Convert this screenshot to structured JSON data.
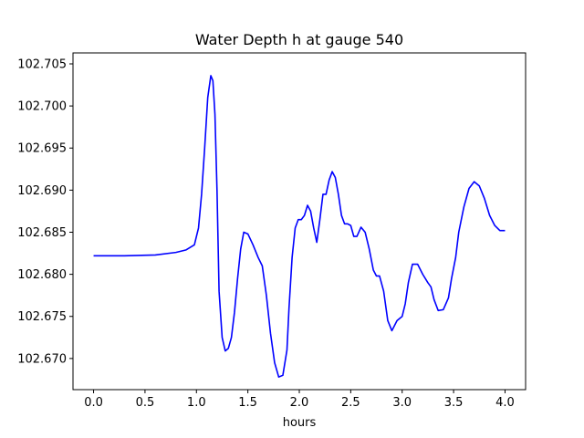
{
  "chart_data": {
    "type": "line",
    "title": "Water Depth h at gauge 540",
    "xlabel": "hours",
    "ylabel": "",
    "xlim": [
      -0.2,
      4.2
    ],
    "ylim": [
      102.6663,
      102.7063
    ],
    "grid": false,
    "xticks": [
      0.0,
      0.5,
      1.0,
      1.5,
      2.0,
      2.5,
      3.0,
      3.5,
      4.0
    ],
    "xtick_labels": [
      "0.0",
      "0.5",
      "1.0",
      "1.5",
      "2.0",
      "2.5",
      "3.0",
      "3.5",
      "4.0"
    ],
    "yticks": [
      102.67,
      102.675,
      102.68,
      102.685,
      102.69,
      102.695,
      102.7,
      102.705
    ],
    "ytick_labels": [
      "102.670",
      "102.675",
      "102.680",
      "102.685",
      "102.690",
      "102.695",
      "102.700",
      "102.705"
    ],
    "series": [
      {
        "color": "#0000ff",
        "x": [
          0.0,
          0.3,
          0.6,
          0.8,
          0.9,
          0.98,
          1.02,
          1.05,
          1.08,
          1.11,
          1.14,
          1.16,
          1.18,
          1.2,
          1.22,
          1.25,
          1.28,
          1.31,
          1.34,
          1.37,
          1.4,
          1.43,
          1.46,
          1.5,
          1.55,
          1.6,
          1.64,
          1.68,
          1.72,
          1.76,
          1.8,
          1.84,
          1.88,
          1.9,
          1.93,
          1.96,
          1.99,
          2.02,
          2.05,
          2.08,
          2.11,
          2.14,
          2.17,
          2.2,
          2.23,
          2.26,
          2.29,
          2.32,
          2.35,
          2.38,
          2.41,
          2.44,
          2.47,
          2.5,
          2.53,
          2.56,
          2.6,
          2.64,
          2.68,
          2.72,
          2.75,
          2.78,
          2.82,
          2.86,
          2.9,
          2.95,
          3.0,
          3.03,
          3.06,
          3.1,
          3.15,
          3.2,
          3.25,
          3.28,
          3.31,
          3.35,
          3.4,
          3.45,
          3.48,
          3.52,
          3.55,
          3.6,
          3.65,
          3.7,
          3.75,
          3.8,
          3.85,
          3.9,
          3.95,
          4.0
        ],
        "y": [
          102.6822,
          102.6822,
          102.6823,
          102.6826,
          102.6829,
          102.6835,
          102.6855,
          102.6895,
          102.695,
          102.701,
          102.7036,
          102.703,
          102.699,
          102.69,
          102.678,
          102.6725,
          102.6709,
          102.6712,
          102.6725,
          102.6755,
          102.6795,
          102.683,
          102.685,
          102.6848,
          102.6835,
          102.682,
          102.681,
          102.6775,
          102.673,
          102.6695,
          102.6678,
          102.668,
          102.671,
          102.676,
          102.682,
          102.6855,
          102.6865,
          102.6865,
          102.687,
          102.6882,
          102.6875,
          102.6855,
          102.6838,
          102.6865,
          102.6895,
          102.6895,
          102.6912,
          102.6922,
          102.6915,
          102.6895,
          102.687,
          102.686,
          102.686,
          102.6858,
          102.6845,
          102.6845,
          102.6856,
          102.685,
          102.683,
          102.6805,
          102.6798,
          102.6798,
          102.678,
          102.6745,
          102.6733,
          102.6745,
          102.675,
          102.6765,
          102.679,
          102.6812,
          102.6812,
          102.68,
          102.679,
          102.6785,
          102.677,
          102.6757,
          102.6758,
          102.6772,
          102.6795,
          102.682,
          102.685,
          102.688,
          102.6902,
          102.691,
          102.6905,
          102.689,
          102.687,
          102.6858,
          102.6852,
          102.6852
        ]
      }
    ]
  }
}
